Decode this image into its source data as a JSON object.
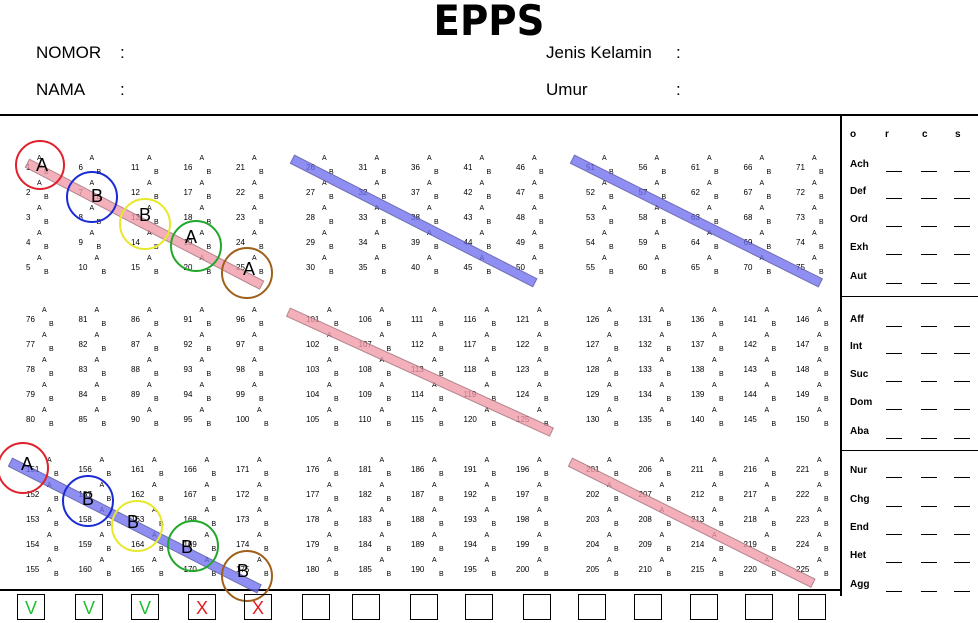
{
  "title": "EPPS",
  "header": {
    "nomor_label": "NOMOR",
    "nama_label": "NAMA",
    "jenis_kelamin_label": "Jenis Kelamin",
    "umur_label": "Umur",
    "field_prefix": ":"
  },
  "choice_a": "A",
  "choice_b": "B",
  "score_headers": [
    "o",
    "r",
    "c",
    "s"
  ],
  "categories": [
    "Ach",
    "Def",
    "Ord",
    "Exh",
    "Aut",
    "Aff",
    "Int",
    "Suc",
    "Dom",
    "Aba",
    "Nur",
    "Chg",
    "End",
    "Het",
    "Agg"
  ],
  "blocks": [
    {
      "start": 1
    },
    {
      "start": 26
    },
    {
      "start": 51
    },
    {
      "start": 76
    },
    {
      "start": 101
    },
    {
      "start": 126
    },
    {
      "start": 151
    },
    {
      "start": 176
    },
    {
      "start": 201
    }
  ],
  "answer_circles": [
    {
      "label": "A",
      "color": "#e0202a"
    },
    {
      "label": "B",
      "color": "#1a2bd6"
    },
    {
      "label": "B",
      "color": "#e8e82a"
    },
    {
      "label": "A",
      "color": "#21a82a"
    },
    {
      "label": "A",
      "color": "#a0601a"
    },
    {
      "label": "A",
      "color": "#e0202a"
    },
    {
      "label": "B",
      "color": "#1a2bd6"
    },
    {
      "label": "B",
      "color": "#e8e82a"
    },
    {
      "label": "B",
      "color": "#21a82a"
    },
    {
      "label": "B",
      "color": "#a0601a"
    }
  ],
  "check_boxes": [
    {
      "mark": "V",
      "color": "#22c032"
    },
    {
      "mark": "V",
      "color": "#22c032"
    },
    {
      "mark": "V",
      "color": "#22c032"
    },
    {
      "mark": "X",
      "color": "#e41c1c"
    },
    {
      "mark": "X",
      "color": "#e41c1c"
    },
    {
      "mark": "",
      "color": "#000000"
    },
    {
      "mark": "",
      "color": "#000000"
    },
    {
      "mark": "",
      "color": "#000000"
    },
    {
      "mark": "",
      "color": "#000000"
    },
    {
      "mark": "",
      "color": "#000000"
    },
    {
      "mark": "",
      "color": "#000000"
    },
    {
      "mark": "",
      "color": "#000000"
    },
    {
      "mark": "",
      "color": "#000000"
    },
    {
      "mark": "",
      "color": "#000000"
    },
    {
      "mark": "",
      "color": "#000000"
    }
  ],
  "band_colors": {
    "blue": "#6f6ff0",
    "pink": "#f09aa8"
  }
}
